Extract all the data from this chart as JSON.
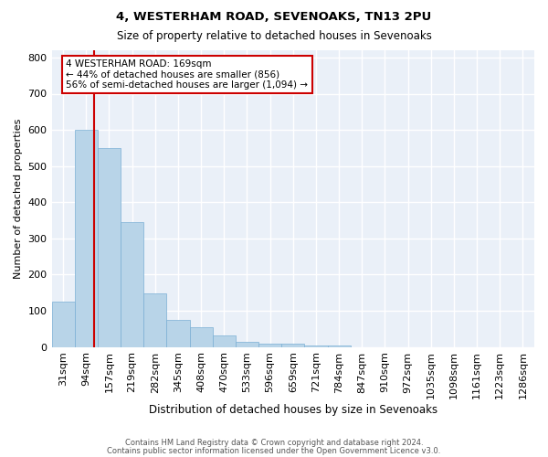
{
  "title1": "4, WESTERHAM ROAD, SEVENOAKS, TN13 2PU",
  "title2": "Size of property relative to detached houses in Sevenoaks",
  "xlabel": "Distribution of detached houses by size in Sevenoaks",
  "ylabel": "Number of detached properties",
  "bar_color": "#b8d4e8",
  "bar_edge_color": "#7aafd4",
  "background_color": "#eaf0f8",
  "grid_color": "#ffffff",
  "bins": [
    "31sqm",
    "94sqm",
    "157sqm",
    "219sqm",
    "282sqm",
    "345sqm",
    "408sqm",
    "470sqm",
    "533sqm",
    "596sqm",
    "659sqm",
    "721sqm",
    "784sqm",
    "847sqm",
    "910sqm",
    "972sqm",
    "1035sqm",
    "1098sqm",
    "1161sqm",
    "1223sqm",
    "1286sqm"
  ],
  "values": [
    125,
    600,
    550,
    345,
    148,
    75,
    55,
    32,
    15,
    10,
    10,
    5,
    5,
    0,
    0,
    0,
    0,
    0,
    0,
    0,
    0
  ],
  "property_line_bin_index": 1.35,
  "annotation_line1": "4 WESTERHAM ROAD: 169sqm",
  "annotation_line2": "← 44% of detached houses are smaller (856)",
  "annotation_line3": "56% of semi-detached houses are larger (1,094) →",
  "annotation_box_color": "#ffffff",
  "annotation_box_edge_color": "#cc0000",
  "annotation_text_color": "#000000",
  "vline_color": "#cc0000",
  "footer1": "Contains HM Land Registry data © Crown copyright and database right 2024.",
  "footer2": "Contains public sector information licensed under the Open Government Licence v3.0.",
  "ylim": [
    0,
    820
  ],
  "yticks": [
    0,
    100,
    200,
    300,
    400,
    500,
    600,
    700,
    800
  ]
}
